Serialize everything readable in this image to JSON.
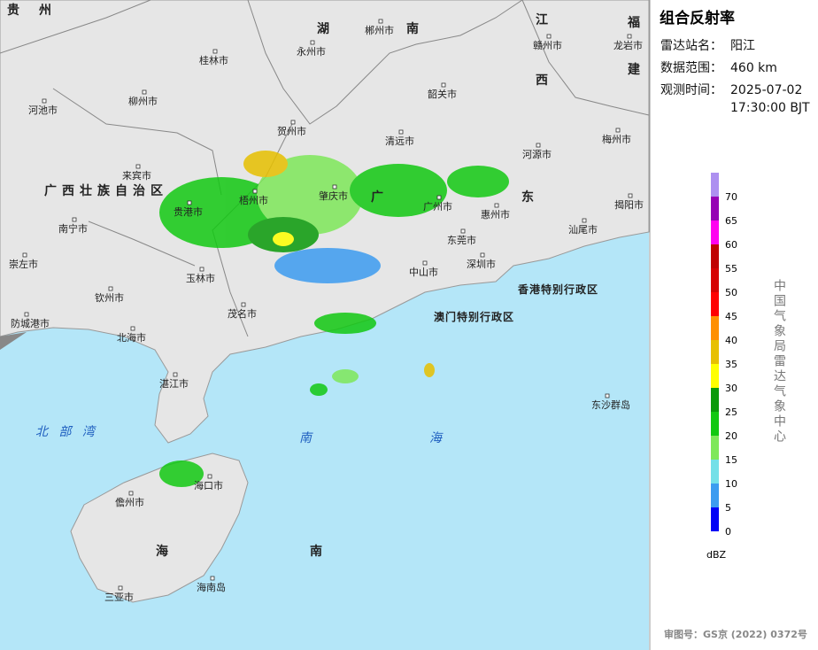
{
  "map": {
    "labels": [
      "贵",
      "州",
      "湖",
      "南",
      "江",
      "西",
      "福",
      "建",
      "广",
      "东",
      "广西壮族自治区",
      "海",
      "南",
      "北 部 湾",
      "南",
      "海",
      "香港特别行政区",
      "澳门特别行政区",
      "桂林市",
      "永州市",
      "郴州市",
      "赣州市",
      "龙岩市",
      "韶关市",
      "柳州市",
      "河池市",
      "贺州市",
      "清远市",
      "河源市",
      "梅州市",
      "来宾市",
      "梧州市",
      "肇庆市",
      "广州市",
      "惠州市",
      "揭阳市",
      "贵港市",
      "南宁市",
      "东莞市",
      "汕尾市",
      "崇左市",
      "玉林市",
      "深圳市",
      "中山市",
      "钦州市",
      "茂名市",
      "防城港市",
      "北海市",
      "湛江市",
      "东沙群岛",
      "海口市",
      "儋州市",
      "三亚市",
      "海南岛"
    ]
  },
  "sidebar": {
    "title": "组合反射率",
    "station_label": "雷达站名：",
    "station": "阳江",
    "range_label": "数据范围：",
    "range": "460 km",
    "time_label": "观测时间：",
    "date": "2025-07-02",
    "time": "17:30:00 BJT",
    "source": "中国气象局雷达气象中心",
    "unit": "dBZ",
    "approval": "审图号：GS京 (2022) 0372号"
  },
  "legend": {
    "levels": [
      {
        "value": 0,
        "color": "#0000f6"
      },
      {
        "value": 5,
        "color": "#3c9cf0"
      },
      {
        "value": 10,
        "color": "#74e0e8"
      },
      {
        "value": 15,
        "color": "#7ee85a"
      },
      {
        "value": 20,
        "color": "#12c812"
      },
      {
        "value": 25,
        "color": "#0a9a0a"
      },
      {
        "value": 30,
        "color": "#ffff00"
      },
      {
        "value": 35,
        "color": "#e7c000"
      },
      {
        "value": 40,
        "color": "#ff9000"
      },
      {
        "value": 45,
        "color": "#ff0000"
      },
      {
        "value": 50,
        "color": "#d60000"
      },
      {
        "value": 55,
        "color": "#c00000"
      },
      {
        "value": 60,
        "color": "#ff00f0"
      },
      {
        "value": 65,
        "color": "#9600b4"
      },
      {
        "value": 70,
        "color": "#ad90f0"
      }
    ]
  }
}
